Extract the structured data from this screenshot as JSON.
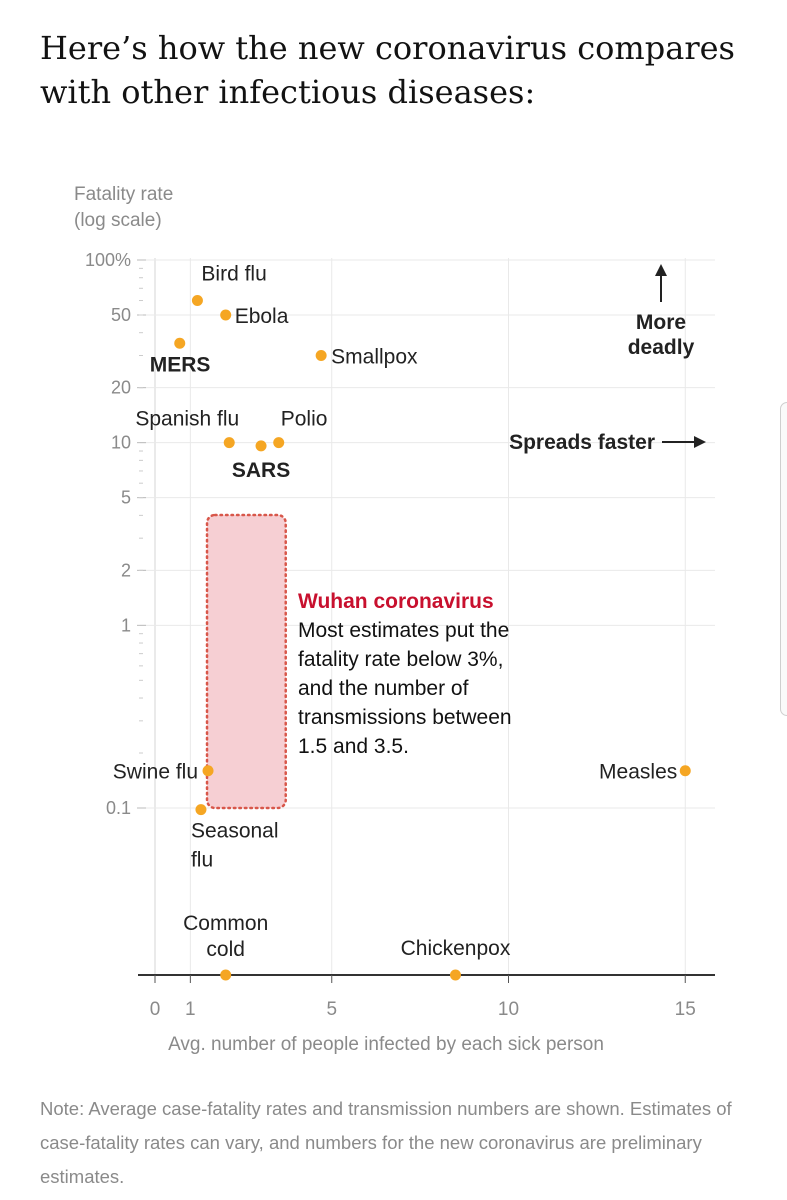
{
  "title": "Here’s how the new coronavirus compares with other infectious diseases:",
  "note": "Note: Average case-fatality rates and transmission numbers are shown. Estimates of case-fatality rates can vary, and numbers for the new coronavirus are preliminary estimates.",
  "chart_data": {
    "type": "scatter",
    "ylabel": "Fatality rate (log scale)",
    "xlabel": "Avg. number of people infected by each sick person",
    "x_ticks": [
      "0",
      "1",
      "5",
      "10",
      "15"
    ],
    "y_ticks": [
      "100%",
      "50",
      "20",
      "10",
      "5",
      "2",
      "1",
      "0.1"
    ],
    "x_tick_values": [
      0,
      1,
      5,
      10,
      15
    ],
    "y_tick_values": [
      100,
      50,
      20,
      10,
      5,
      2,
      1,
      0.1
    ],
    "xlim": [
      -0.5,
      16
    ],
    "ylim_log": [
      0.01,
      100
    ],
    "accent_color": "#f5a623",
    "highlight_color": "#c8102e",
    "points": [
      {
        "name": "Bird flu",
        "x": 1.2,
        "y": 60,
        "bold": false
      },
      {
        "name": "Ebola",
        "x": 2.0,
        "y": 50,
        "bold": false
      },
      {
        "name": "MERS",
        "x": 0.7,
        "y": 35,
        "bold": true
      },
      {
        "name": "Smallpox",
        "x": 4.7,
        "y": 30,
        "bold": false
      },
      {
        "name": "Spanish flu",
        "x": 2.1,
        "y": 10,
        "bold": false
      },
      {
        "name": "SARS",
        "x": 3.0,
        "y": 9.6,
        "bold": true
      },
      {
        "name": "Polio",
        "x": 3.5,
        "y": 10,
        "bold": false
      },
      {
        "name": "Swine flu",
        "x": 1.5,
        "y": 0.16,
        "bold": false
      },
      {
        "name": "Seasonal flu",
        "x": 1.3,
        "y": 0.098,
        "bold": false
      },
      {
        "name": "Measles",
        "x": 15,
        "y": 0.16,
        "bold": false
      },
      {
        "name": "Common cold",
        "x": 2.0,
        "y": 0.01,
        "bold": false
      },
      {
        "name": "Chickenpox",
        "x": 8.5,
        "y": 0.01,
        "bold": false
      }
    ],
    "highlight_region": {
      "x_min": 1.5,
      "x_max": 3.5,
      "y_min": 0.1,
      "y_max": 3
    },
    "annotations": {
      "more_deadly": [
        "More",
        "deadly"
      ],
      "spreads_faster": "Spreads faster",
      "wuhan_title": "Wuhan coronavirus",
      "wuhan_text": [
        "Most estimates put the",
        "fatality rate below 3%,",
        "and the number of",
        "transmissions between",
        "1.5 and 3.5."
      ]
    }
  }
}
